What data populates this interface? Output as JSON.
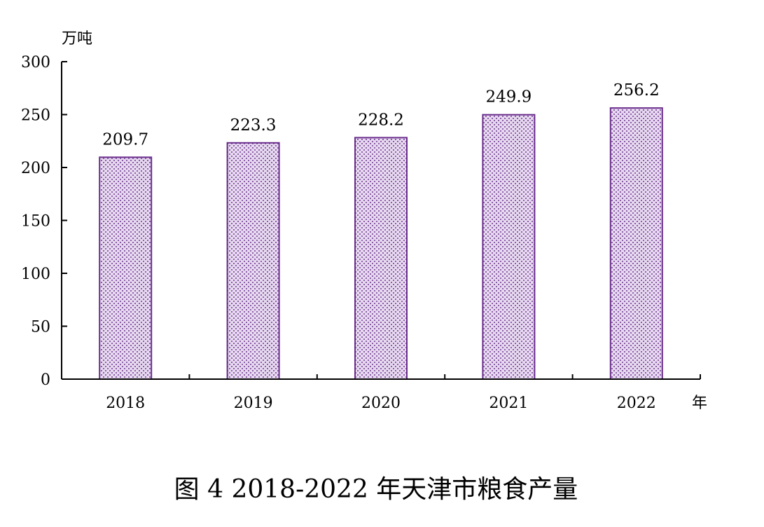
{
  "chart_data": {
    "type": "bar",
    "title": "图 4 2018-2022 年天津市粮食产量",
    "ylabel": "万吨",
    "xlabel": "年",
    "categories": [
      "2018",
      "2019",
      "2020",
      "2021",
      "2022"
    ],
    "values": [
      209.7,
      223.3,
      228.2,
      249.9,
      256.2
    ],
    "value_labels": [
      "209.7",
      "223.3",
      "228.2",
      "249.9",
      "256.2"
    ],
    "ylim": [
      0,
      300
    ],
    "yticks": [
      0,
      50,
      100,
      150,
      200,
      250,
      300
    ],
    "ytick_labels": [
      "0",
      "50",
      "100",
      "150",
      "200",
      "250",
      "300"
    ],
    "grid": false,
    "colors": {
      "bar_fill": "#e6d9ef",
      "bar_pattern": "#8c5ca8",
      "bar_border": "#6a2d8c",
      "axis": "#000000"
    }
  }
}
